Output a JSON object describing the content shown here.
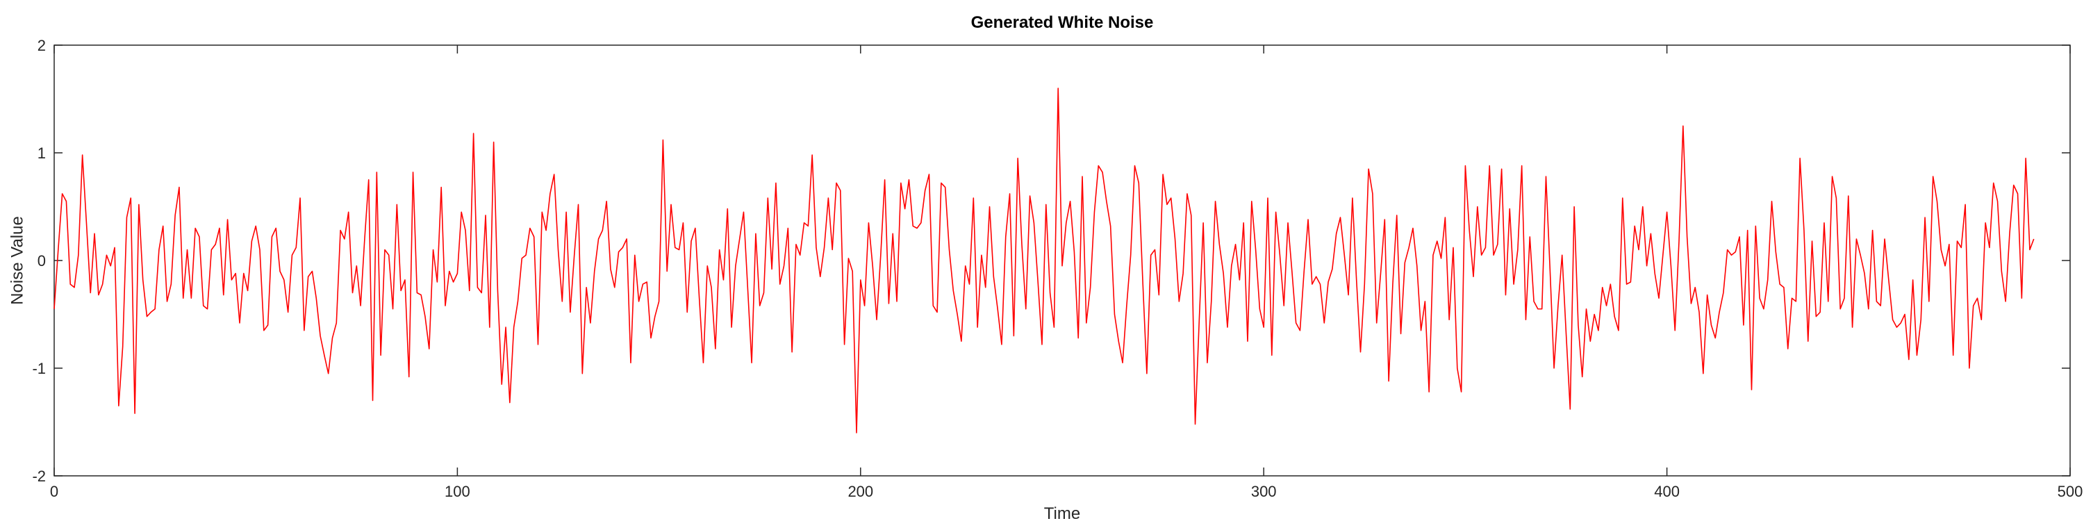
{
  "chart_data": {
    "type": "line",
    "title": "Generated White Noise",
    "xlabel": "Time",
    "ylabel": "Noise Value",
    "xlim": [
      0,
      500
    ],
    "ylim": [
      -2,
      2
    ],
    "xticks": [
      0,
      100,
      200,
      300,
      400,
      500
    ],
    "yticks": [
      -2,
      -1,
      0,
      1,
      2
    ],
    "grid": false,
    "legend": "none",
    "series": [
      {
        "color": "#ff0000",
        "x0": 0,
        "dx": 1,
        "values": [
          -0.45,
          0.1,
          0.62,
          0.55,
          -0.22,
          -0.25,
          0.05,
          0.98,
          0.35,
          -0.3,
          0.25,
          -0.32,
          -0.22,
          0.05,
          -0.05,
          0.12,
          -1.35,
          -0.8,
          0.4,
          0.58,
          -1.42,
          0.52,
          -0.18,
          -0.52,
          -0.48,
          -0.45,
          0.1,
          0.32,
          -0.38,
          -0.22,
          0.42,
          0.68,
          -0.35,
          0.1,
          -0.35,
          0.3,
          0.22,
          -0.42,
          -0.45,
          0.1,
          0.15,
          0.3,
          -0.32,
          0.38,
          -0.18,
          -0.12,
          -0.58,
          -0.12,
          -0.28,
          0.18,
          0.32,
          0.1,
          -0.65,
          -0.6,
          0.22,
          0.3,
          -0.1,
          -0.18,
          -0.48,
          0.05,
          0.12,
          0.58,
          -0.65,
          -0.15,
          -0.1,
          -0.35,
          -0.7,
          -0.88,
          -1.05,
          -0.72,
          -0.58,
          0.28,
          0.2,
          0.45,
          -0.3,
          -0.05,
          -0.42,
          0.2,
          0.75,
          -1.3,
          0.82,
          -0.88,
          0.1,
          0.05,
          -0.45,
          0.52,
          -0.28,
          -0.18,
          -1.08,
          0.82,
          -0.3,
          -0.32,
          -0.52,
          -0.82,
          0.1,
          -0.2,
          0.68,
          -0.42,
          -0.1,
          -0.2,
          -0.12,
          0.45,
          0.28,
          -0.28,
          1.18,
          -0.25,
          -0.3,
          0.42,
          -0.62,
          1.1,
          -0.28,
          -1.15,
          -0.62,
          -1.32,
          -0.62,
          -0.38,
          0.02,
          0.05,
          0.3,
          0.22,
          -0.78,
          0.45,
          0.28,
          0.62,
          0.8,
          0.1,
          -0.38,
          0.45,
          -0.48,
          0.05,
          0.52,
          -1.05,
          -0.25,
          -0.58,
          -0.1,
          0.2,
          0.28,
          0.55,
          -0.08,
          -0.25,
          0.08,
          0.12,
          0.2,
          -0.95,
          0.05,
          -0.38,
          -0.22,
          -0.2,
          -0.72,
          -0.52,
          -0.38,
          1.12,
          -0.1,
          0.52,
          0.12,
          0.1,
          0.35,
          -0.48,
          0.18,
          0.3,
          -0.35,
          -0.95,
          -0.05,
          -0.25,
          -0.82,
          0.1,
          -0.18,
          0.48,
          -0.62,
          -0.05,
          0.2,
          0.45,
          -0.25,
          -0.95,
          0.25,
          -0.42,
          -0.3,
          0.58,
          -0.08,
          0.72,
          -0.22,
          -0.05,
          0.3,
          -0.85,
          0.15,
          0.05,
          0.35,
          0.32,
          0.98,
          0.12,
          -0.15,
          0.12,
          0.58,
          0.1,
          0.72,
          0.65,
          -0.78,
          0.02,
          -0.1,
          -1.6,
          -0.18,
          -0.42,
          0.35,
          -0.05,
          -0.55,
          0.05,
          0.75,
          -0.4,
          0.25,
          -0.38,
          0.72,
          0.48,
          0.75,
          0.32,
          0.3,
          0.35,
          0.65,
          0.8,
          -0.42,
          -0.48,
          0.72,
          0.68,
          0.1,
          -0.28,
          -0.5,
          -0.75,
          -0.05,
          -0.22,
          0.58,
          -0.62,
          0.05,
          -0.25,
          0.5,
          -0.15,
          -0.45,
          -0.78,
          0.22,
          0.62,
          -0.7,
          0.95,
          0.15,
          -0.45,
          0.6,
          0.35,
          -0.2,
          -0.78,
          0.52,
          -0.3,
          -0.62,
          1.6,
          -0.05,
          0.35,
          0.55,
          0.08,
          -0.72,
          0.78,
          -0.58,
          -0.25,
          0.45,
          0.88,
          0.82,
          0.55,
          0.32,
          -0.5,
          -0.75,
          -0.95,
          -0.42,
          0.05,
          0.88,
          0.72,
          -0.2,
          -1.05,
          0.05,
          0.1,
          -0.32,
          0.8,
          0.52,
          0.58,
          0.2,
          -0.38,
          -0.12,
          0.62,
          0.42,
          -1.52,
          -0.55,
          0.35,
          -0.95,
          -0.38,
          0.55,
          0.15,
          -0.12,
          -0.62,
          -0.05,
          0.15,
          -0.18,
          0.35,
          -0.75,
          0.55,
          0.1,
          -0.45,
          -0.62,
          0.58,
          -0.88,
          0.45,
          0.05,
          -0.42,
          0.35,
          -0.1,
          -0.58,
          -0.65,
          -0.1,
          0.38,
          -0.22,
          -0.15,
          -0.22,
          -0.58,
          -0.2,
          -0.08,
          0.25,
          0.4,
          0.05,
          -0.32,
          0.58,
          -0.18,
          -0.85,
          -0.22,
          0.85,
          0.62,
          -0.58,
          -0.12,
          0.38,
          -1.12,
          -0.22,
          0.42,
          -0.68,
          -0.02,
          0.12,
          0.3,
          -0.05,
          -0.65,
          -0.38,
          -1.22,
          0.05,
          0.18,
          0.02,
          0.4,
          -0.55,
          0.12,
          -1.0,
          -1.22,
          0.88,
          0.28,
          -0.15,
          0.5,
          0.05,
          0.12,
          0.88,
          0.05,
          0.15,
          0.85,
          -0.32,
          0.48,
          -0.22,
          0.1,
          0.88,
          -0.55,
          0.22,
          -0.38,
          -0.45,
          -0.45,
          0.78,
          -0.08,
          -1.0,
          -0.42,
          0.05,
          -0.68,
          -1.38,
          0.5,
          -0.6,
          -1.08,
          -0.45,
          -0.75,
          -0.5,
          -0.65,
          -0.25,
          -0.42,
          -0.22,
          -0.52,
          -0.65,
          0.58,
          -0.22,
          -0.2,
          0.32,
          0.1,
          0.5,
          -0.05,
          0.25,
          -0.12,
          -0.35,
          0.05,
          0.45,
          -0.05,
          -0.65,
          0.18,
          1.25,
          0.22,
          -0.4,
          -0.25,
          -0.48,
          -1.05,
          -0.32,
          -0.6,
          -0.72,
          -0.48,
          -0.3,
          0.1,
          0.05,
          0.08,
          0.22,
          -0.6,
          0.28,
          -1.2,
          0.32,
          -0.35,
          -0.45,
          -0.18,
          0.55,
          0.08,
          -0.22,
          -0.25,
          -0.82,
          -0.35,
          -0.38,
          0.95,
          0.28,
          -0.75,
          0.18,
          -0.52,
          -0.48,
          0.35,
          -0.38,
          0.78,
          0.58,
          -0.45,
          -0.35,
          0.6,
          -0.62,
          0.2,
          0.05,
          -0.12,
          -0.45,
          0.28,
          -0.38,
          -0.42,
          0.2,
          -0.18,
          -0.55,
          -0.62,
          -0.58,
          -0.5,
          -0.92,
          -0.18,
          -0.88,
          -0.55,
          0.4,
          -0.38,
          0.78,
          0.55,
          0.1,
          -0.05,
          0.15,
          -0.88,
          0.18,
          0.12,
          0.52,
          -1.0,
          -0.42,
          -0.35,
          -0.55,
          0.35,
          0.12,
          0.72,
          0.55,
          -0.1,
          -0.38,
          0.25,
          0.7,
          0.62,
          -0.35,
          0.95,
          0.1,
          0.2
        ]
      }
    ]
  }
}
